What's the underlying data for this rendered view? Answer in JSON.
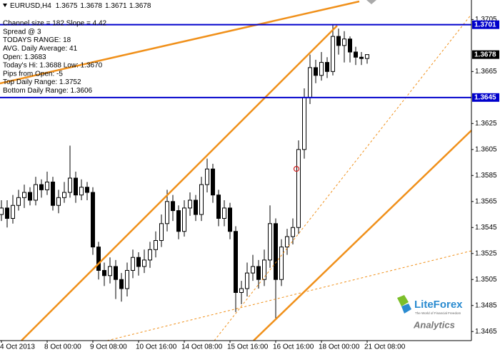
{
  "chart_data": {
    "type": "candlestick",
    "symbol": "EURUSD,H4",
    "categories": [
      "4 Oct 2013",
      null,
      null,
      null,
      null,
      null,
      null,
      null,
      "8 Oct 00:00",
      null,
      null,
      null,
      null,
      null,
      null,
      null,
      "9 Oct 08:00",
      null,
      null,
      null,
      null,
      null,
      null,
      null,
      "10 Oct 16:00",
      null,
      null,
      null,
      null,
      null,
      null,
      null,
      "14 Oct 08:00",
      null,
      null,
      null,
      null,
      null,
      null,
      null,
      "15 Oct 16:00",
      null,
      null,
      null,
      null,
      null,
      null,
      null,
      "16 Oct 16:00",
      null,
      null,
      null,
      null,
      null,
      null,
      null,
      "18 Oct 00:00",
      null,
      null,
      null,
      null,
      null,
      null,
      null,
      "21 Oct 08:00"
    ],
    "open": [
      1.3555,
      1.356,
      1.3552,
      1.3562,
      1.3568,
      1.3572,
      1.3566,
      1.3578,
      1.3574,
      1.358,
      1.3562,
      1.3568,
      1.3572,
      1.3583,
      1.357,
      1.3576,
      1.3572,
      1.353,
      1.3512,
      1.3508,
      1.3515,
      1.3505,
      1.3498,
      1.3512,
      1.3522,
      1.3515,
      1.352,
      1.3528,
      1.3535,
      1.3548,
      1.3565,
      1.3558,
      1.3542,
      1.356,
      1.3566,
      1.3555,
      1.3578,
      1.359,
      1.357,
      1.3552,
      1.356,
      1.3542,
      1.3495,
      1.3498,
      1.351,
      1.3515,
      1.3505,
      1.352,
      1.3548,
      1.3505,
      1.353,
      1.3538,
      1.3545,
      1.3605,
      1.3645,
      1.3668,
      1.3662,
      1.3672,
      1.3665,
      1.3692,
      1.3685,
      1.369,
      1.368,
      1.3676,
      1.3675
    ],
    "high": [
      1.3566,
      1.3566,
      1.357,
      1.3574,
      1.3578,
      1.3576,
      1.3584,
      1.3582,
      1.3588,
      1.3584,
      1.3574,
      1.358,
      1.3608,
      1.3588,
      1.3582,
      1.358,
      1.3576,
      1.3534,
      1.3518,
      1.3522,
      1.352,
      1.351,
      1.3518,
      1.3528,
      1.3526,
      1.3528,
      1.3534,
      1.3542,
      1.3555,
      1.3574,
      1.357,
      1.3562,
      1.3566,
      1.3572,
      1.357,
      1.3584,
      1.3598,
      1.3594,
      1.3574,
      1.3566,
      1.3564,
      1.3546,
      1.3504,
      1.3518,
      1.3524,
      1.352,
      1.3528,
      1.3562,
      1.3552,
      1.3536,
      1.3544,
      1.3552,
      1.3612,
      1.3652,
      1.3678,
      1.3674,
      1.368,
      1.3676,
      1.3701,
      1.3698,
      1.3696,
      1.3692,
      1.3684,
      1.368,
      1.3678
    ],
    "low": [
      1.355,
      1.3545,
      1.3548,
      1.3558,
      1.356,
      1.3562,
      1.3562,
      1.3568,
      1.357,
      1.3558,
      1.3556,
      1.3564,
      1.3568,
      1.3564,
      1.3566,
      1.3566,
      1.3524,
      1.3505,
      1.35,
      1.3502,
      1.349,
      1.3488,
      1.3492,
      1.3506,
      1.3508,
      1.351,
      1.3514,
      1.3522,
      1.353,
      1.3542,
      1.355,
      1.3536,
      1.3538,
      1.3554,
      1.355,
      1.355,
      1.3572,
      1.3564,
      1.3546,
      1.3546,
      1.3536,
      1.348,
      1.3486,
      1.3492,
      1.3504,
      1.3498,
      1.35,
      1.3514,
      1.3475,
      1.35,
      1.3524,
      1.3532,
      1.354,
      1.3598,
      1.364,
      1.3656,
      1.3658,
      1.366,
      1.3662,
      1.3678,
      1.3672,
      1.3672,
      1.367,
      1.367,
      1.3671
    ],
    "close": [
      1.356,
      1.3552,
      1.3562,
      1.3568,
      1.3572,
      1.3566,
      1.3578,
      1.3574,
      1.358,
      1.3562,
      1.3568,
      1.3572,
      1.3583,
      1.357,
      1.3576,
      1.3572,
      1.353,
      1.3512,
      1.3508,
      1.3515,
      1.3505,
      1.3498,
      1.3512,
      1.3522,
      1.3515,
      1.352,
      1.3528,
      1.3535,
      1.3548,
      1.3565,
      1.3558,
      1.3542,
      1.356,
      1.3566,
      1.3555,
      1.3578,
      1.359,
      1.357,
      1.3552,
      1.356,
      1.3542,
      1.3495,
      1.3498,
      1.351,
      1.3515,
      1.3505,
      1.352,
      1.3548,
      1.3505,
      1.353,
      1.3538,
      1.3545,
      1.3605,
      1.3645,
      1.3668,
      1.3662,
      1.3672,
      1.3665,
      1.3692,
      1.3685,
      1.369,
      1.368,
      1.3676,
      1.3675,
      1.3678
    ],
    "ylim": [
      1.3458,
      1.372
    ],
    "yticks": [
      1.3705,
      1.3665,
      1.3625,
      1.3605,
      1.3585,
      1.3565,
      1.3545,
      1.3525,
      1.3505,
      1.3485,
      1.3465
    ],
    "hlines": [
      1.3701,
      1.3645
    ],
    "hline_color": "#0000cc",
    "current_price": 1.3678,
    "annotations": [
      "Channel size = 182 Slope = 4.42",
      "Spread @ 3",
      "TODAYS RANGE: 18",
      "AVG. Daily Average: 41",
      "Open: 1.3683",
      "Today's Hi: 1.3688  Low: 1.3670",
      "Pips from Open: -5",
      "Top Daily Range: 1.3752",
      "Bottom Daily Range: 1.3606"
    ],
    "logo": {
      "name": "LiteForex",
      "tagline": "The World of Financial Freedom",
      "sub": "Analytics"
    }
  }
}
